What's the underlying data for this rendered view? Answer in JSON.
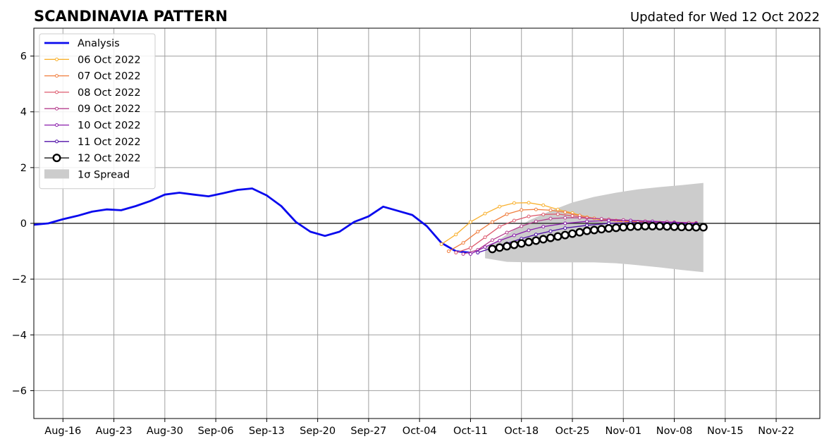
{
  "header": {
    "title": "SCANDINAVIA PATTERN",
    "updated": "Updated for Wed 12 Oct 2022"
  },
  "chart_data": {
    "type": "line",
    "title": "SCANDINAVIA PATTERN",
    "subtitle": "Updated for Wed 12 Oct 2022",
    "xlabel": "",
    "ylabel": "",
    "xlim": [
      "2022-08-12",
      "2022-11-28"
    ],
    "ylim": [
      -7,
      7
    ],
    "x_tick_dates": [
      "2022-08-16",
      "2022-08-23",
      "2022-08-30",
      "2022-09-06",
      "2022-09-13",
      "2022-09-20",
      "2022-09-27",
      "2022-10-04",
      "2022-10-11",
      "2022-10-18",
      "2022-10-25",
      "2022-11-01",
      "2022-11-08",
      "2022-11-15",
      "2022-11-22"
    ],
    "x_tick_labels": [
      "Aug-16",
      "Aug-23",
      "Aug-30",
      "Sep-06",
      "Sep-13",
      "Sep-20",
      "Sep-27",
      "Oct-04",
      "Oct-11",
      "Oct-18",
      "Oct-25",
      "Nov-01",
      "Nov-08",
      "Nov-15",
      "Nov-22"
    ],
    "y_ticks": [
      -6,
      -4,
      -2,
      0,
      2,
      4,
      6
    ],
    "y_tick_labels": [
      "−6",
      "−4",
      "−2",
      "0",
      "2",
      "4",
      "6"
    ],
    "grid": true,
    "zero_line": true,
    "legend_position": "upper-left",
    "series": [
      {
        "name": "Analysis",
        "color": "#0a0aee",
        "style": "thick",
        "points": [
          [
            "2022-08-12",
            -0.05
          ],
          [
            "2022-08-14",
            0.0
          ],
          [
            "2022-08-16",
            0.15
          ],
          [
            "2022-08-18",
            0.27
          ],
          [
            "2022-08-20",
            0.42
          ],
          [
            "2022-08-22",
            0.5
          ],
          [
            "2022-08-24",
            0.47
          ],
          [
            "2022-08-26",
            0.62
          ],
          [
            "2022-08-28",
            0.8
          ],
          [
            "2022-08-30",
            1.03
          ],
          [
            "2022-09-01",
            1.1
          ],
          [
            "2022-09-03",
            1.03
          ],
          [
            "2022-09-05",
            0.97
          ],
          [
            "2022-09-07",
            1.08
          ],
          [
            "2022-09-09",
            1.2
          ],
          [
            "2022-09-11",
            1.25
          ],
          [
            "2022-09-13",
            1.0
          ],
          [
            "2022-09-15",
            0.62
          ],
          [
            "2022-09-17",
            0.05
          ],
          [
            "2022-09-19",
            -0.3
          ],
          [
            "2022-09-21",
            -0.45
          ],
          [
            "2022-09-23",
            -0.3
          ],
          [
            "2022-09-25",
            0.05
          ],
          [
            "2022-09-27",
            0.25
          ],
          [
            "2022-09-29",
            0.6
          ],
          [
            "2022-10-01",
            0.45
          ],
          [
            "2022-10-03",
            0.3
          ],
          [
            "2022-10-05",
            -0.1
          ],
          [
            "2022-10-07",
            -0.7
          ],
          [
            "2022-10-09",
            -1.0
          ],
          [
            "2022-10-11",
            -1.05
          ]
        ]
      },
      {
        "name": "06 Oct 2022",
        "color": "#f9b12f",
        "style": "small-dot",
        "points": [
          [
            "2022-10-07",
            -0.75
          ],
          [
            "2022-10-09",
            -0.4
          ],
          [
            "2022-10-11",
            0.05
          ],
          [
            "2022-10-13",
            0.35
          ],
          [
            "2022-10-15",
            0.6
          ],
          [
            "2022-10-17",
            0.73
          ],
          [
            "2022-10-19",
            0.74
          ],
          [
            "2022-10-21",
            0.65
          ],
          [
            "2022-10-23",
            0.5
          ],
          [
            "2022-10-25",
            0.37
          ],
          [
            "2022-10-27",
            0.22
          ],
          [
            "2022-10-29",
            0.12
          ],
          [
            "2022-11-01",
            0.06
          ],
          [
            "2022-11-04",
            0.04
          ],
          [
            "2022-11-07",
            0.02
          ],
          [
            "2022-11-10",
            0.0
          ]
        ]
      },
      {
        "name": "07 Oct 2022",
        "color": "#f07e3e",
        "style": "small-dot",
        "points": [
          [
            "2022-10-08",
            -1.0
          ],
          [
            "2022-10-10",
            -0.7
          ],
          [
            "2022-10-12",
            -0.3
          ],
          [
            "2022-10-14",
            0.05
          ],
          [
            "2022-10-16",
            0.33
          ],
          [
            "2022-10-18",
            0.48
          ],
          [
            "2022-10-20",
            0.5
          ],
          [
            "2022-10-22",
            0.47
          ],
          [
            "2022-10-24",
            0.4
          ],
          [
            "2022-10-26",
            0.28
          ],
          [
            "2022-10-28",
            0.18
          ],
          [
            "2022-10-31",
            0.1
          ],
          [
            "2022-11-03",
            0.06
          ],
          [
            "2022-11-06",
            0.03
          ],
          [
            "2022-11-10",
            0.01
          ]
        ]
      },
      {
        "name": "08 Oct 2022",
        "color": "#dd5a6e",
        "style": "small-dot",
        "points": [
          [
            "2022-10-09",
            -1.05
          ],
          [
            "2022-10-11",
            -0.88
          ],
          [
            "2022-10-13",
            -0.5
          ],
          [
            "2022-10-15",
            -0.12
          ],
          [
            "2022-10-17",
            0.1
          ],
          [
            "2022-10-19",
            0.25
          ],
          [
            "2022-10-21",
            0.32
          ],
          [
            "2022-10-23",
            0.33
          ],
          [
            "2022-10-25",
            0.27
          ],
          [
            "2022-10-27",
            0.2
          ],
          [
            "2022-10-30",
            0.14
          ],
          [
            "2022-11-02",
            0.1
          ],
          [
            "2022-11-05",
            0.07
          ],
          [
            "2022-11-08",
            0.04
          ],
          [
            "2022-11-11",
            0.02
          ]
        ]
      },
      {
        "name": "09 Oct 2022",
        "color": "#b7408f",
        "style": "small-dot",
        "points": [
          [
            "2022-10-10",
            -1.1
          ],
          [
            "2022-10-12",
            -0.95
          ],
          [
            "2022-10-14",
            -0.6
          ],
          [
            "2022-10-16",
            -0.33
          ],
          [
            "2022-10-18",
            -0.1
          ],
          [
            "2022-10-20",
            0.07
          ],
          [
            "2022-10-22",
            0.17
          ],
          [
            "2022-10-24",
            0.2
          ],
          [
            "2022-10-26",
            0.2
          ],
          [
            "2022-10-29",
            0.16
          ],
          [
            "2022-11-01",
            0.12
          ],
          [
            "2022-11-04",
            0.08
          ],
          [
            "2022-11-07",
            0.05
          ],
          [
            "2022-11-10",
            0.02
          ]
        ]
      },
      {
        "name": "10 Oct 2022",
        "color": "#8a1cac",
        "style": "small-dot",
        "points": [
          [
            "2022-10-11",
            -1.1
          ],
          [
            "2022-10-13",
            -0.85
          ],
          [
            "2022-10-15",
            -0.62
          ],
          [
            "2022-10-17",
            -0.43
          ],
          [
            "2022-10-19",
            -0.25
          ],
          [
            "2022-10-21",
            -0.12
          ],
          [
            "2022-10-24",
            0.0
          ],
          [
            "2022-10-27",
            0.07
          ],
          [
            "2022-10-30",
            0.1
          ],
          [
            "2022-11-02",
            0.1
          ],
          [
            "2022-11-05",
            0.07
          ],
          [
            "2022-11-08",
            0.03
          ],
          [
            "2022-11-11",
            0.0
          ]
        ]
      },
      {
        "name": "11 Oct 2022",
        "color": "#5010a8",
        "style": "small-dot",
        "points": [
          [
            "2022-10-12",
            -1.05
          ],
          [
            "2022-10-14",
            -0.88
          ],
          [
            "2022-10-16",
            -0.72
          ],
          [
            "2022-10-18",
            -0.55
          ],
          [
            "2022-10-20",
            -0.4
          ],
          [
            "2022-10-22",
            -0.28
          ],
          [
            "2022-10-24",
            -0.17
          ],
          [
            "2022-10-27",
            -0.07
          ],
          [
            "2022-10-30",
            0.0
          ],
          [
            "2022-11-02",
            0.03
          ],
          [
            "2022-11-05",
            0.02
          ],
          [
            "2022-11-08",
            0.0
          ],
          [
            "2022-11-11",
            -0.02
          ]
        ]
      },
      {
        "name": "12 Oct 2022",
        "color": "#000000",
        "style": "big-circle",
        "points": [
          [
            "2022-10-14",
            -0.92
          ],
          [
            "2022-10-15",
            -0.87
          ],
          [
            "2022-10-16",
            -0.82
          ],
          [
            "2022-10-17",
            -0.77
          ],
          [
            "2022-10-18",
            -0.72
          ],
          [
            "2022-10-19",
            -0.67
          ],
          [
            "2022-10-20",
            -0.62
          ],
          [
            "2022-10-21",
            -0.57
          ],
          [
            "2022-10-22",
            -0.52
          ],
          [
            "2022-10-23",
            -0.47
          ],
          [
            "2022-10-24",
            -0.42
          ],
          [
            "2022-10-25",
            -0.37
          ],
          [
            "2022-10-26",
            -0.32
          ],
          [
            "2022-10-27",
            -0.27
          ],
          [
            "2022-10-28",
            -0.24
          ],
          [
            "2022-10-29",
            -0.21
          ],
          [
            "2022-10-30",
            -0.18
          ],
          [
            "2022-10-31",
            -0.16
          ],
          [
            "2022-11-01",
            -0.14
          ],
          [
            "2022-11-02",
            -0.12
          ],
          [
            "2022-11-03",
            -0.11
          ],
          [
            "2022-11-04",
            -0.1
          ],
          [
            "2022-11-05",
            -0.1
          ],
          [
            "2022-11-06",
            -0.1
          ],
          [
            "2022-11-07",
            -0.11
          ],
          [
            "2022-11-08",
            -0.12
          ],
          [
            "2022-11-09",
            -0.13
          ],
          [
            "2022-11-10",
            -0.13
          ],
          [
            "2022-11-11",
            -0.14
          ],
          [
            "2022-11-12",
            -0.14
          ]
        ]
      }
    ],
    "spread": {
      "name": "1σ Spread",
      "color": "#cccccc",
      "upper": [
        [
          "2022-10-13",
          -0.9
        ],
        [
          "2022-10-16",
          -0.4
        ],
        [
          "2022-10-19",
          0.1
        ],
        [
          "2022-10-22",
          0.45
        ],
        [
          "2022-10-25",
          0.75
        ],
        [
          "2022-10-28",
          0.95
        ],
        [
          "2022-10-31",
          1.1
        ],
        [
          "2022-11-03",
          1.22
        ],
        [
          "2022-11-06",
          1.3
        ],
        [
          "2022-11-09",
          1.37
        ],
        [
          "2022-11-12",
          1.45
        ]
      ],
      "lower": [
        [
          "2022-10-13",
          -1.25
        ],
        [
          "2022-10-16",
          -1.38
        ],
        [
          "2022-10-19",
          -1.4
        ],
        [
          "2022-10-22",
          -1.4
        ],
        [
          "2022-10-25",
          -1.4
        ],
        [
          "2022-10-28",
          -1.4
        ],
        [
          "2022-10-31",
          -1.43
        ],
        [
          "2022-11-03",
          -1.5
        ],
        [
          "2022-11-06",
          -1.58
        ],
        [
          "2022-11-09",
          -1.67
        ],
        [
          "2022-11-12",
          -1.75
        ]
      ]
    }
  }
}
